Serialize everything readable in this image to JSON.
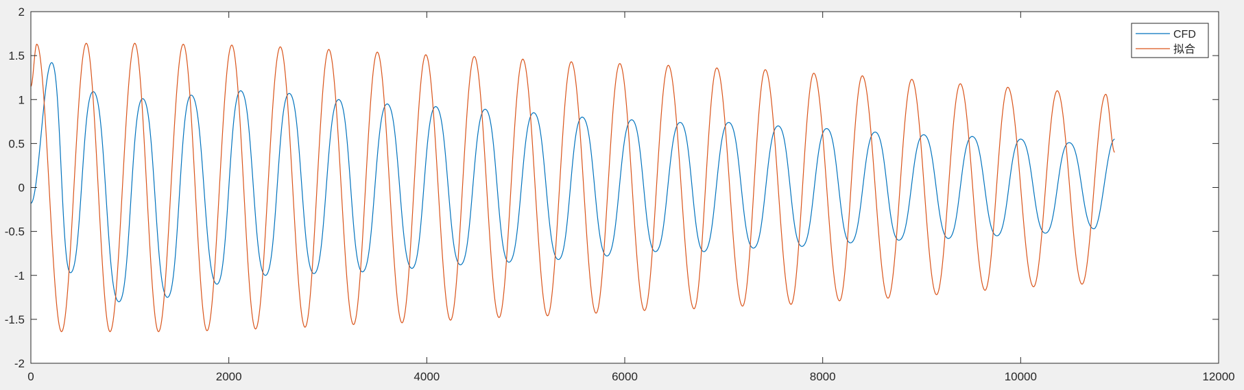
{
  "chart_data": {
    "type": "line",
    "title": "",
    "xlabel": "",
    "ylabel": "",
    "xlim": [
      0,
      12000
    ],
    "ylim": [
      -2,
      2
    ],
    "x_ticks": [
      0,
      2000,
      4000,
      6000,
      8000,
      10000,
      12000
    ],
    "y_ticks": [
      -2,
      -1.5,
      -1,
      -0.5,
      0,
      0.5,
      1,
      1.5,
      2
    ],
    "x_tick_labels": [
      "0",
      "2000",
      "4000",
      "6000",
      "8000",
      "10000",
      "12000"
    ],
    "y_tick_labels": [
      "-2",
      "-1.5",
      "-1",
      "-0.5",
      "0",
      "0.5",
      "1",
      "1.5",
      "2"
    ],
    "grid": false,
    "legend": "top-right",
    "series": [
      {
        "name": "CFD",
        "color": "#0072bd",
        "x_range": [
          0,
          10950
        ],
        "period": 495,
        "notes_pattern": "main oscillation with a second harmonic ripple; amplitude decays",
        "peaks": [
          [
            210,
            1.42
          ],
          [
            630,
            1.09
          ],
          [
            1130,
            1.01
          ],
          [
            1620,
            1.05
          ],
          [
            2120,
            1.1
          ],
          [
            2610,
            1.07
          ],
          [
            3110,
            1.0
          ],
          [
            3600,
            0.95
          ],
          [
            4090,
            0.92
          ],
          [
            4590,
            0.89
          ],
          [
            5080,
            0.85
          ],
          [
            5570,
            0.8
          ],
          [
            6070,
            0.77
          ],
          [
            6560,
            0.74
          ],
          [
            7050,
            0.74
          ],
          [
            7550,
            0.7
          ],
          [
            8040,
            0.67
          ],
          [
            8530,
            0.63
          ],
          [
            9020,
            0.6
          ],
          [
            9510,
            0.58
          ],
          [
            10000,
            0.55
          ],
          [
            10490,
            0.51
          ]
        ],
        "troughs": [
          [
            400,
            -0.97
          ],
          [
            890,
            -1.3
          ],
          [
            1380,
            -1.25
          ],
          [
            1880,
            -1.1
          ],
          [
            2370,
            -1.0
          ],
          [
            2860,
            -0.98
          ],
          [
            3350,
            -0.96
          ],
          [
            3850,
            -0.92
          ],
          [
            4340,
            -0.88
          ],
          [
            4830,
            -0.85
          ],
          [
            5330,
            -0.82
          ],
          [
            5820,
            -0.78
          ],
          [
            6310,
            -0.73
          ],
          [
            6800,
            -0.73
          ],
          [
            7300,
            -0.69
          ],
          [
            7790,
            -0.67
          ],
          [
            8280,
            -0.63
          ],
          [
            8770,
            -0.6
          ],
          [
            9270,
            -0.58
          ],
          [
            9760,
            -0.55
          ],
          [
            10250,
            -0.52
          ],
          [
            10740,
            -0.47
          ]
        ],
        "start": [
          0,
          -0.18
        ],
        "end": [
          10950,
          0.55
        ]
      },
      {
        "name": "拟合",
        "color": "#d95319",
        "x_range": [
          0,
          10950
        ],
        "period": 490,
        "notes_pattern": "sinusoid with slowly decaying amplitude",
        "peaks": [
          [
            60,
            1.63
          ],
          [
            560,
            1.64
          ],
          [
            1050,
            1.64
          ],
          [
            1540,
            1.63
          ],
          [
            2030,
            1.62
          ],
          [
            2520,
            1.6
          ],
          [
            3010,
            1.57
          ],
          [
            3500,
            1.54
          ],
          [
            3990,
            1.51
          ],
          [
            4480,
            1.49
          ],
          [
            4970,
            1.46
          ],
          [
            5460,
            1.43
          ],
          [
            5950,
            1.41
          ],
          [
            6440,
            1.39
          ],
          [
            6930,
            1.36
          ],
          [
            7420,
            1.34
          ],
          [
            7910,
            1.3
          ],
          [
            8400,
            1.27
          ],
          [
            8900,
            1.23
          ],
          [
            9390,
            1.18
          ],
          [
            9870,
            1.14
          ],
          [
            10370,
            1.1
          ],
          [
            10860,
            1.06
          ]
        ],
        "troughs": [
          [
            310,
            -1.64
          ],
          [
            800,
            -1.64
          ],
          [
            1290,
            -1.64
          ],
          [
            1780,
            -1.63
          ],
          [
            2270,
            -1.61
          ],
          [
            2770,
            -1.59
          ],
          [
            3260,
            -1.56
          ],
          [
            3750,
            -1.54
          ],
          [
            4240,
            -1.51
          ],
          [
            4730,
            -1.48
          ],
          [
            5220,
            -1.46
          ],
          [
            5710,
            -1.43
          ],
          [
            6200,
            -1.4
          ],
          [
            6700,
            -1.38
          ],
          [
            7190,
            -1.35
          ],
          [
            7680,
            -1.33
          ],
          [
            8170,
            -1.29
          ],
          [
            8660,
            -1.26
          ],
          [
            9150,
            -1.22
          ],
          [
            9640,
            -1.17
          ],
          [
            10130,
            -1.13
          ],
          [
            10620,
            -1.1
          ]
        ],
        "start": [
          0,
          1.15
        ],
        "end": [
          10950,
          0.4
        ]
      }
    ]
  }
}
